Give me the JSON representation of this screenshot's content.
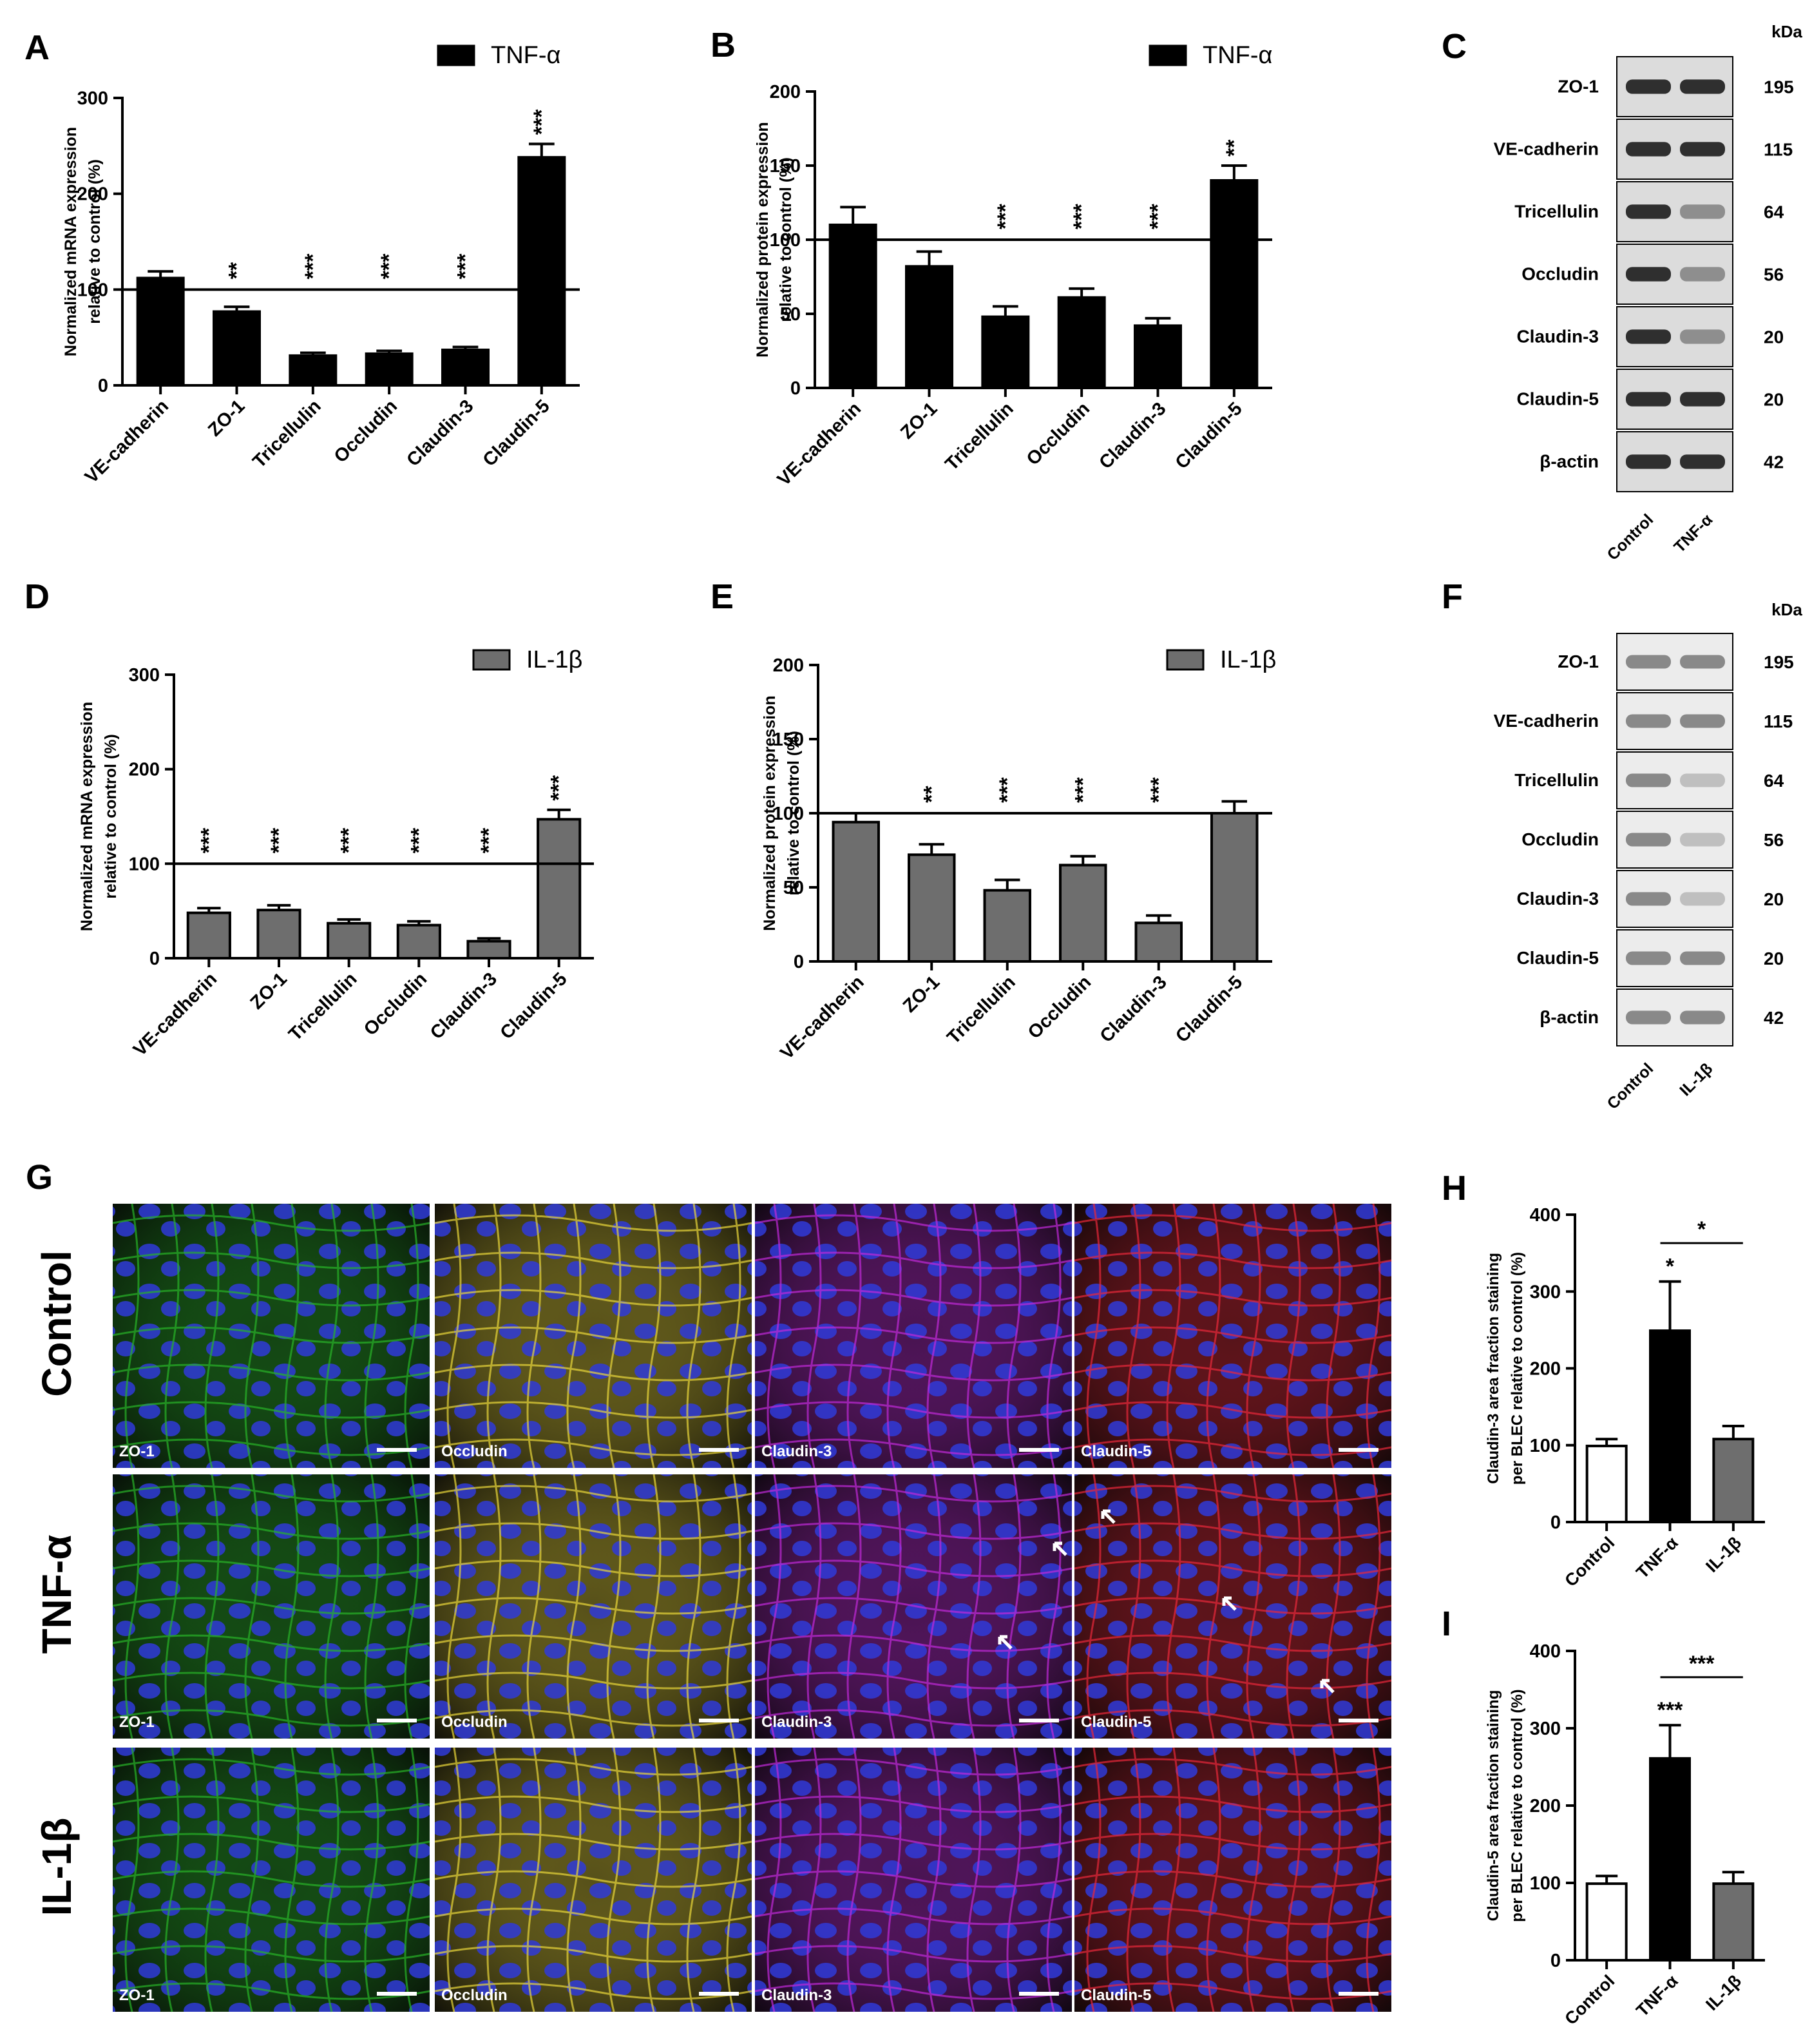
{
  "panels": [
    {
      "id": "A",
      "letter": "A",
      "legend": "TNF-α",
      "fill": "#000000",
      "ylabel": [
        "Normalized mRNA expression",
        "relative to control (%)"
      ],
      "ylim": [
        0,
        300
      ],
      "yticks": [
        0,
        100,
        200,
        300
      ],
      "reference": 100,
      "categories": [
        "VE-cadherin",
        "ZO-1",
        "Tricellulin",
        "Occludin",
        "Claudin-3",
        "Claudin-5"
      ],
      "values": [
        112,
        77,
        31,
        33,
        37,
        238
      ],
      "errors": [
        7,
        5,
        3,
        3,
        3,
        14
      ],
      "sig": [
        "",
        "**",
        "***",
        "***",
        "***",
        "***"
      ]
    },
    {
      "id": "B",
      "letter": "B",
      "legend": "TNF-α",
      "fill": "#000000",
      "ylabel": [
        "Normalized protein expression",
        "relative to control (%)"
      ],
      "ylim": [
        0,
        200
      ],
      "yticks": [
        0,
        50,
        100,
        150,
        200
      ],
      "reference": 100,
      "categories": [
        "VE-cadherin",
        "ZO-1",
        "Tricellulin",
        "Occludin",
        "Claudin-3",
        "Claudin-5"
      ],
      "values": [
        110,
        82,
        48,
        61,
        42,
        140
      ],
      "errors": [
        12,
        10,
        7,
        6,
        5,
        10
      ],
      "sig": [
        "",
        "",
        "***",
        "***",
        "***",
        "**"
      ]
    },
    {
      "id": "D",
      "letter": "D",
      "legend": "IL-1β",
      "fill": "#6e6e6e",
      "ylabel": [
        "Normalized mRNA expression",
        "relative to control (%)"
      ],
      "ylim": [
        0,
        300
      ],
      "yticks": [
        0,
        100,
        200,
        300
      ],
      "reference": 100,
      "categories": [
        "VE-cadherin",
        "ZO-1",
        "Tricellulin",
        "Occludin",
        "Claudin-3",
        "Claudin-5"
      ],
      "values": [
        48,
        51,
        37,
        35,
        18,
        147
      ],
      "errors": [
        5,
        5,
        4,
        4,
        3,
        10
      ],
      "sig": [
        "***",
        "***",
        "***",
        "***",
        "***",
        "***"
      ]
    },
    {
      "id": "E",
      "letter": "E",
      "legend": "IL-1β",
      "fill": "#6e6e6e",
      "ylabel": [
        "Normalized protein expression",
        "relative to control (%)"
      ],
      "ylim": [
        0,
        200
      ],
      "yticks": [
        0,
        50,
        100,
        150,
        200
      ],
      "reference": 100,
      "categories": [
        "VE-cadherin",
        "ZO-1",
        "Tricellulin",
        "Occludin",
        "Claudin-3",
        "Claudin-5"
      ],
      "values": [
        94,
        72,
        48,
        65,
        26,
        100
      ],
      "errors": [
        6,
        7,
        7,
        6,
        5,
        8
      ],
      "sig": [
        "",
        "**",
        "***",
        "***",
        "***",
        ""
      ]
    },
    {
      "id": "H",
      "letter": "H",
      "legend": "",
      "ylabel": [
        "Claudin-3 area fraction staining",
        "per BLEC relative to control (%)"
      ],
      "ylim": [
        0,
        400
      ],
      "yticks": [
        0,
        100,
        200,
        300,
        400
      ],
      "categories": [
        "Control",
        "TNF-α",
        "IL-1β"
      ],
      "fills": [
        "#ffffff",
        "#000000",
        "#6e6e6e"
      ],
      "values": [
        99,
        249,
        108
      ],
      "errors": [
        9,
        64,
        17
      ],
      "sig": [
        "",
        "*",
        ""
      ],
      "bracket": {
        "from": 1,
        "to": 2,
        "label": "*"
      }
    },
    {
      "id": "I",
      "letter": "I",
      "legend": "",
      "ylabel": [
        "Claudin-5 area fraction staining",
        "per BLEC relative to control (%)"
      ],
      "ylim": [
        0,
        400
      ],
      "yticks": [
        0,
        100,
        200,
        300,
        400
      ],
      "categories": [
        "Control",
        "TNF-α",
        "IL-1β"
      ],
      "fills": [
        "#ffffff",
        "#000000",
        "#6e6e6e"
      ],
      "values": [
        99,
        261,
        99
      ],
      "errors": [
        10,
        43,
        15
      ],
      "sig": [
        "",
        "***",
        ""
      ],
      "bracket": {
        "from": 1,
        "to": 2,
        "label": "***"
      }
    }
  ],
  "blots": [
    {
      "id": "C",
      "letter": "C",
      "unit": "kDa",
      "bands": [
        "ZO-1",
        "VE-cadherin",
        "Tricellulin",
        "Occludin",
        "Claudin-3",
        "Claudin-5",
        "β-actin"
      ],
      "kda": [
        "195",
        "115",
        "64",
        "56",
        "20",
        "20",
        "42"
      ],
      "lanes": [
        "Control",
        "TNF-α"
      ]
    },
    {
      "id": "F",
      "letter": "F",
      "unit": "kDa",
      "bands": [
        "ZO-1",
        "VE-cadherin",
        "Tricellulin",
        "Occludin",
        "Claudin-3",
        "Claudin-5",
        "β-actin"
      ],
      "kda": [
        "195",
        "115",
        "64",
        "56",
        "20",
        "20",
        "42"
      ],
      "lanes": [
        "Control",
        "IL-1β"
      ]
    }
  ],
  "micrographs": {
    "letter": "G",
    "rows": [
      "Control",
      "TNF-α",
      "IL-1β"
    ],
    "columns": [
      {
        "label": "ZO-1",
        "color": "#28b428"
      },
      {
        "label": "Occludin",
        "color": "#e8d63a"
      },
      {
        "label": "Claudin-3",
        "color": "#c02ad8"
      },
      {
        "label": "Claudin-5",
        "color": "#e8283a"
      }
    ],
    "nucleus_color": "#2f3ad8"
  },
  "chart_data": [
    {
      "type": "bar",
      "panel": "A",
      "legend": "TNF-α",
      "ylabel": "Normalized mRNA expression relative to control (%)",
      "ylim": [
        0,
        300
      ],
      "categories": [
        "VE-cadherin",
        "ZO-1",
        "Tricellulin",
        "Occludin",
        "Claudin-3",
        "Claudin-5"
      ],
      "values": [
        112,
        77,
        31,
        33,
        37,
        238
      ]
    },
    {
      "type": "bar",
      "panel": "B",
      "legend": "TNF-α",
      "ylabel": "Normalized protein expression relative to control (%)",
      "ylim": [
        0,
        200
      ],
      "categories": [
        "VE-cadherin",
        "ZO-1",
        "Tricellulin",
        "Occludin",
        "Claudin-3",
        "Claudin-5"
      ],
      "values": [
        110,
        82,
        48,
        61,
        42,
        140
      ]
    },
    {
      "type": "bar",
      "panel": "D",
      "legend": "IL-1β",
      "ylabel": "Normalized mRNA expression relative to control (%)",
      "ylim": [
        0,
        300
      ],
      "categories": [
        "VE-cadherin",
        "ZO-1",
        "Tricellulin",
        "Occludin",
        "Claudin-3",
        "Claudin-5"
      ],
      "values": [
        48,
        51,
        37,
        35,
        18,
        147
      ]
    },
    {
      "type": "bar",
      "panel": "E",
      "legend": "IL-1β",
      "ylabel": "Normalized protein expression relative to control (%)",
      "ylim": [
        0,
        200
      ],
      "categories": [
        "VE-cadherin",
        "ZO-1",
        "Tricellulin",
        "Occludin",
        "Claudin-3",
        "Claudin-5"
      ],
      "values": [
        94,
        72,
        48,
        65,
        26,
        100
      ]
    },
    {
      "type": "bar",
      "panel": "H",
      "ylabel": "Claudin-3 area fraction staining per BLEC relative to control (%)",
      "ylim": [
        0,
        400
      ],
      "categories": [
        "Control",
        "TNF-α",
        "IL-1β"
      ],
      "values": [
        99,
        249,
        108
      ]
    },
    {
      "type": "bar",
      "panel": "I",
      "ylabel": "Claudin-5 area fraction staining per BLEC relative to control (%)",
      "ylim": [
        0,
        400
      ],
      "categories": [
        "Control",
        "TNF-α",
        "IL-1β"
      ],
      "values": [
        99,
        261,
        99
      ]
    }
  ]
}
